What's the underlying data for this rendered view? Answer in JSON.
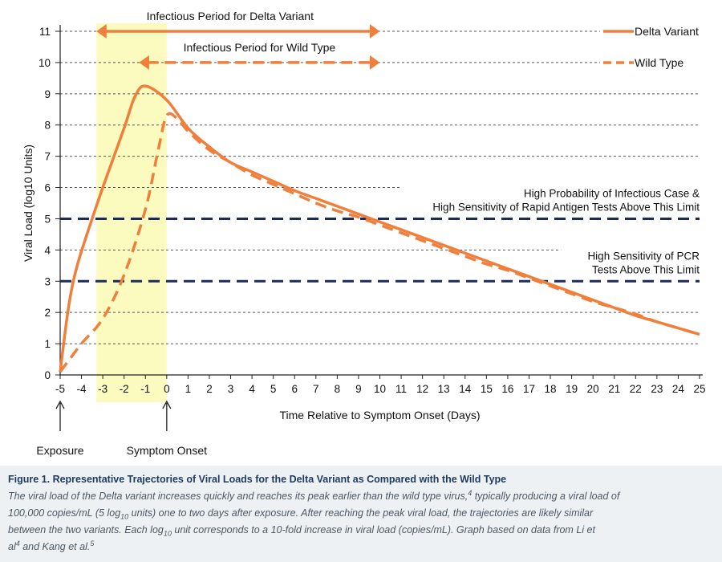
{
  "chart_data": {
    "type": "line",
    "xlabel": "Time Relative to Symptom Onset (Days)",
    "ylabel": "Viral Load (log10 Units)",
    "xlim": [
      -5,
      25
    ],
    "ylim": [
      0,
      11
    ],
    "x_ticks": [
      -5,
      -4,
      -3,
      -2,
      -1,
      0,
      1,
      2,
      3,
      4,
      5,
      6,
      7,
      8,
      9,
      10,
      11,
      12,
      13,
      14,
      15,
      16,
      17,
      18,
      19,
      20,
      21,
      22,
      23,
      24,
      25
    ],
    "y_ticks": [
      0,
      1,
      2,
      3,
      4,
      5,
      6,
      7,
      8,
      9,
      10,
      11
    ],
    "series": [
      {
        "name": "Delta Variant",
        "style": "solid",
        "color": "#f07f3c",
        "points": [
          [
            -5,
            0.1
          ],
          [
            -4.6,
            2.2
          ],
          [
            -4.2,
            3.5
          ],
          [
            -3.5,
            5.0
          ],
          [
            -3,
            6.0
          ],
          [
            -2,
            7.9
          ],
          [
            -1.5,
            8.9
          ],
          [
            -1,
            9.25
          ],
          [
            0,
            8.8
          ],
          [
            1,
            7.9
          ],
          [
            2,
            7.3
          ],
          [
            3,
            6.8
          ],
          [
            4,
            6.5
          ],
          [
            5,
            6.2
          ],
          [
            6,
            5.9
          ],
          [
            7,
            5.65
          ],
          [
            8,
            5.4
          ],
          [
            9,
            5.15
          ],
          [
            10,
            4.9
          ],
          [
            11,
            4.65
          ],
          [
            12,
            4.4
          ],
          [
            13,
            4.15
          ],
          [
            14,
            3.9
          ],
          [
            15,
            3.65
          ],
          [
            16,
            3.4
          ],
          [
            17,
            3.15
          ],
          [
            18,
            2.9
          ],
          [
            19,
            2.65
          ],
          [
            20,
            2.4
          ],
          [
            21,
            2.15
          ],
          [
            22,
            1.9
          ],
          [
            23,
            1.7
          ],
          [
            24,
            1.5
          ],
          [
            25,
            1.3
          ]
        ]
      },
      {
        "name": "Wild Type",
        "style": "dashed",
        "color": "#f07f3c",
        "points": [
          [
            -5,
            0.1
          ],
          [
            -4,
            1.0
          ],
          [
            -3,
            1.8
          ],
          [
            -2,
            3.2
          ],
          [
            -1,
            5.3
          ],
          [
            -0.4,
            7.2
          ],
          [
            0,
            8.3
          ],
          [
            0.5,
            8.2
          ],
          [
            1,
            7.8
          ],
          [
            2,
            7.2
          ],
          [
            3,
            6.8
          ],
          [
            4,
            6.4
          ],
          [
            5,
            6.1
          ],
          [
            6,
            5.8
          ],
          [
            7,
            5.5
          ],
          [
            8,
            5.25
          ],
          [
            9,
            5.05
          ],
          [
            10,
            4.8
          ],
          [
            11,
            4.55
          ],
          [
            12,
            4.3
          ],
          [
            13,
            4.05
          ],
          [
            14,
            3.8
          ],
          [
            15,
            3.55
          ],
          [
            16,
            3.35
          ],
          [
            17,
            3.1
          ],
          [
            18,
            2.85
          ],
          [
            19,
            2.6
          ],
          [
            20,
            2.35
          ],
          [
            21,
            2.15
          ],
          [
            22,
            1.95
          ],
          [
            23,
            1.7
          ],
          [
            24,
            1.5
          ],
          [
            25,
            1.3
          ]
        ]
      }
    ],
    "thresholds": [
      {
        "y": 5,
        "label_lines": [
          "High Probability of Infectious Case &",
          "High Sensitivity of Rapid Antigen Tests Above This Limit"
        ]
      },
      {
        "y": 3,
        "label_lines": [
          "High Sensitivity of PCR",
          "Tests Above This Limit"
        ]
      }
    ],
    "infectious_periods": [
      {
        "label": "Infectious Period for Delta Variant",
        "from": -3.3,
        "to": 10,
        "y": 11,
        "style": "solid"
      },
      {
        "label": "Infectious Period for Wild Type",
        "from": -1.3,
        "to": 10,
        "y": 10,
        "style": "dashed"
      }
    ],
    "highlight_band": {
      "from": -3.3,
      "to": 0,
      "color": "#fbfbc0"
    },
    "markers": [
      {
        "x": -5,
        "label": "Exposure"
      },
      {
        "x": 0,
        "label": "Symptom Onset"
      }
    ],
    "legend": [
      {
        "label": "Delta Variant",
        "style": "solid"
      },
      {
        "label": "Wild Type",
        "style": "dashed"
      }
    ],
    "legend_position": "top-right",
    "colors": {
      "curve": "#f07f3c",
      "threshold": "#1a2b5c",
      "grid": "#555555",
      "band": "#fbfbc0"
    }
  },
  "caption": {
    "title": "Figure 1. Representative Trajectories of Viral Loads for the Delta Variant as Compared with the Wild Type",
    "line1_a": "The viral load of the Delta variant increases quickly and reaches its peak earlier than the wild type virus,",
    "line1_sup": "4",
    "line1_b": " typically producing a viral load of",
    "line2_a": "100,000 copies/mL (5 log",
    "line2_sub": "10",
    "line2_b": " units) one to two days after exposure. After reaching the peak viral load, the trajectories are likely similar",
    "line3_a": "between the two variants. Each log",
    "line3_sub": "10",
    "line3_b": " unit corresponds to a 10-fold increase in viral load (copies/mL). Graph based on data from Li et",
    "line4_a": "al",
    "line4_sup": "4",
    "line4_b": " and Kang et al.",
    "line4_sup2": "5"
  }
}
